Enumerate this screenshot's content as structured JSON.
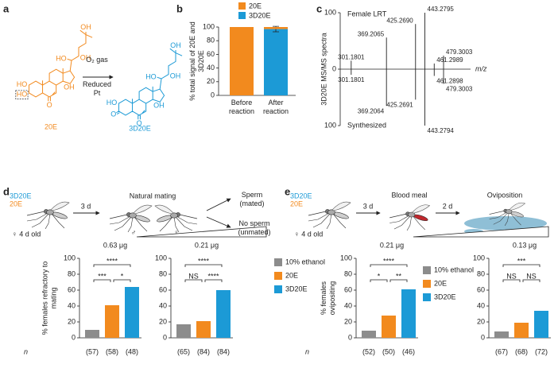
{
  "figure": {
    "panel_labels": [
      "a",
      "b",
      "c",
      "d",
      "e"
    ],
    "a": {
      "reactant": "20E",
      "product": "3D20E",
      "condition_above": "O₂ gas",
      "condition_below": "Reduced Pt",
      "reactant_atoms": [
        "HO",
        "HO",
        "O",
        "OH",
        "HO",
        "OH",
        "OH"
      ],
      "product_atoms": [
        "HO",
        "O",
        "O",
        "OH",
        "HO",
        "OH",
        "OH"
      ]
    },
    "d": {
      "treatments": [
        "3D20E",
        "20E"
      ],
      "age": "♀ 4 d old",
      "interval": "3 d",
      "step": "Natural mating",
      "male": "♂",
      "female": "♀",
      "outcomes": [
        "Sperm (mated)",
        "No sperm (unmated)"
      ]
    },
    "e": {
      "treatments": [
        "3D20E",
        "20E"
      ],
      "age": "♀ 4 d old",
      "intervals": [
        "3 d",
        "2 d"
      ],
      "steps": [
        "Blood meal",
        "Oviposition"
      ]
    }
  },
  "chart_data": [
    {
      "type": "stacked_bar",
      "ylabel": "% total signal of 20E and 3D20E",
      "categories": [
        "Before reaction",
        "After reaction"
      ],
      "series": [
        {
          "name": "20E",
          "color": "#f28a1e",
          "values": [
            100,
            3
          ]
        },
        {
          "name": "3D20E",
          "color": "#1c9ad6",
          "values": [
            0,
            97
          ],
          "errors": [
            null,
            4
          ]
        }
      ],
      "ylim": [
        0,
        100
      ],
      "yticks": [
        0,
        20,
        40,
        60,
        80,
        100
      ]
    },
    {
      "type": "mirror_spectrum",
      "ylabel": "3D20E MS/MS spectra",
      "xlabel": "m/z",
      "color": "#222222",
      "xlim": [
        280,
        490
      ],
      "ylim": [
        -100,
        100
      ],
      "yticks": [
        {
          "value": -100,
          "label": "100"
        },
        0,
        100
      ],
      "series": [
        {
          "name": "Female LRT",
          "x": [
            301.1801,
            369.2065,
            425.269,
            443.2795,
            461.2989,
            479.3003
          ],
          "x_labels": [
            "301.1801",
            "369.2065",
            "425.2690",
            "443.2795",
            "461.2989",
            "479.3003"
          ],
          "values": [
            15,
            56,
            80,
            100,
            10,
            24
          ]
        },
        {
          "name": "Synthesized",
          "x": [
            301.1801,
            369.2064,
            425.2691,
            443.2794,
            461.2898,
            479.3003
          ],
          "x_labels": [
            "301.1801",
            "369.2064",
            "425.2691",
            "443.2794",
            "461.2898",
            "479.3003"
          ],
          "values": [
            -10,
            -65,
            -54,
            -100,
            -12,
            -26
          ]
        }
      ]
    },
    {
      "type": "bar",
      "ylabel": "% females refractory to mating",
      "n_label": "n",
      "ylim": [
        0,
        100
      ],
      "yticks": [
        0,
        20,
        40,
        60,
        80,
        100
      ],
      "series": [
        {
          "name": "10% ethanol",
          "color": "#8c8c8c",
          "values": [
            10,
            17
          ]
        },
        {
          "name": "20E",
          "color": "#f28a1e",
          "values": [
            41,
            21
          ]
        },
        {
          "name": "3D20E",
          "color": "#1c9ad6",
          "values": [
            64,
            60
          ]
        }
      ],
      "groups": [
        {
          "title": "0.63 μg",
          "n": [
            "(57)",
            "(58)",
            "(48)"
          ],
          "significance": [
            "****",
            "***",
            "*"
          ]
        },
        {
          "title": "0.21 μg",
          "n": [
            "(65)",
            "(84)",
            "(84)"
          ],
          "significance": [
            "****",
            "NS",
            "****"
          ]
        }
      ]
    },
    {
      "type": "bar",
      "ylabel": "% females ovipositing",
      "n_label": "n",
      "ylim": [
        0,
        100
      ],
      "yticks": [
        0,
        20,
        40,
        60,
        80,
        100
      ],
      "series": [
        {
          "name": "10% ethanol",
          "color": "#8c8c8c",
          "values": [
            9,
            8
          ]
        },
        {
          "name": "20E",
          "color": "#f28a1e",
          "values": [
            28,
            19
          ]
        },
        {
          "name": "3D20E",
          "color": "#1c9ad6",
          "values": [
            61,
            34
          ]
        }
      ],
      "groups": [
        {
          "title": "0.21 μg",
          "n": [
            "(52)",
            "(50)",
            "(46)"
          ],
          "significance": [
            "****",
            "*",
            "**"
          ]
        },
        {
          "title": "0.13 μg",
          "n": [
            "(67)",
            "(68)",
            "(72)"
          ],
          "significance": [
            "***",
            "NS",
            "NS"
          ]
        }
      ]
    }
  ]
}
